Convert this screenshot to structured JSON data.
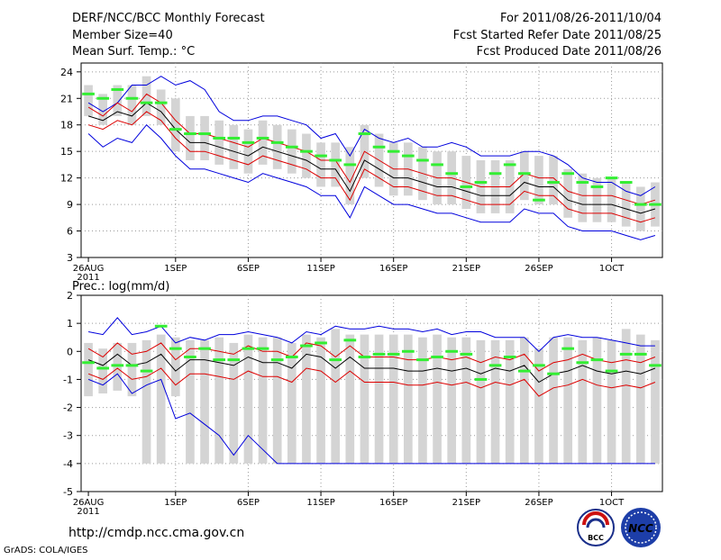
{
  "header": {
    "title": "DERF/NCC/BCC Monthly Forecast",
    "member_size": "Member Size=40",
    "variable_label": "Mean Surf. Temp.: °C",
    "period": "For 2011/08/26-2011/10/04",
    "fcst_started": "Fcst Started Refer Date 2011/08/25",
    "fcst_produced": "Fcst Produced Date 2011/08/26"
  },
  "footer": {
    "url": "http://cmdp.ncc.cma.gov.cn",
    "grads": "GrADS: COLA/IGES",
    "logo_bcc_text": "BCC",
    "logo_ncc_text": "NCC"
  },
  "colors": {
    "envelope": "#0000dd",
    "spread": "#dd0000",
    "mean": "#000000",
    "box": "#d4d4d4",
    "observed": "#33ee33"
  },
  "chart_data": [
    {
      "type": "box-plume",
      "title": "Mean Surf. Temp.: °C",
      "days": 40,
      "xlabels": [
        {
          "day": 0,
          "label": "26AUG",
          "sub": "2011"
        },
        {
          "day": 6,
          "label": "1SEP"
        },
        {
          "day": 11,
          "label": "6SEP"
        },
        {
          "day": 16,
          "label": "11SEP"
        },
        {
          "day": 21,
          "label": "16SEP"
        },
        {
          "day": 26,
          "label": "21SEP"
        },
        {
          "day": 31,
          "label": "26SEP"
        },
        {
          "day": 36,
          "label": "1OCT"
        }
      ],
      "ylim": [
        3,
        25
      ],
      "yticks": [
        3,
        6,
        9,
        12,
        15,
        18,
        21,
        24
      ],
      "max": [
        20.5,
        19.5,
        20.5,
        22.5,
        22.5,
        23.5,
        22.5,
        23,
        22,
        19.5,
        18.5,
        18.5,
        19,
        19,
        18.5,
        18,
        16.5,
        17,
        14.5,
        17.5,
        16.5,
        16,
        16.5,
        15.5,
        15.5,
        16,
        15.5,
        14.5,
        14.5,
        14.5,
        15,
        15,
        14.5,
        13.5,
        12,
        11.5,
        11.5,
        10.5,
        10,
        11
      ],
      "upper": [
        20,
        19,
        20.5,
        19.5,
        21.5,
        20.5,
        18.5,
        17,
        17,
        16.5,
        16,
        15.5,
        16.5,
        16,
        15.5,
        15,
        14,
        14,
        11.5,
        15,
        14,
        13,
        13,
        12.5,
        12,
        12,
        11.5,
        11,
        11,
        11,
        12.5,
        12,
        12,
        10.5,
        10,
        10,
        10,
        9.5,
        9,
        9.5
      ],
      "mean": [
        19,
        18.5,
        19.5,
        19,
        20.5,
        19.5,
        17.5,
        16,
        16,
        15.5,
        15,
        14.5,
        15.5,
        15,
        14.5,
        14,
        13,
        13,
        10.5,
        14,
        13,
        12,
        12,
        11.5,
        11,
        11,
        10.5,
        10,
        10,
        10,
        11.5,
        11,
        11,
        9.5,
        9,
        9,
        9,
        8.5,
        8,
        8.5
      ],
      "lower": [
        18,
        17.5,
        18.5,
        18,
        19.5,
        18.5,
        16.5,
        15,
        15,
        14.5,
        14,
        13.5,
        14.5,
        14,
        13.5,
        13,
        12,
        12,
        9.5,
        13,
        12,
        11,
        11,
        10.5,
        10,
        10,
        9.5,
        9,
        9,
        9,
        10.5,
        10,
        10,
        8.5,
        8,
        8,
        8,
        7.5,
        7,
        7.5
      ],
      "min": [
        17,
        15.5,
        16.5,
        16,
        18,
        16.5,
        14.5,
        13,
        13,
        12.5,
        12,
        11.5,
        12.5,
        12,
        11.5,
        11,
        10,
        10,
        7.5,
        11,
        10,
        9,
        9,
        8.5,
        8,
        8,
        7.5,
        7,
        7,
        7,
        8.5,
        8,
        8,
        6.5,
        6,
        6,
        6,
        5.5,
        5,
        5.5
      ],
      "observed": [
        21.5,
        21,
        22,
        21,
        20.5,
        20.5,
        17.5,
        17,
        17,
        16.5,
        16.5,
        16,
        16.5,
        16,
        15.5,
        15,
        14.5,
        14,
        13.5,
        17,
        15.5,
        15,
        14.5,
        14,
        13.5,
        12.5,
        11,
        11.5,
        12.5,
        13.5,
        12.5,
        9.5,
        11.5,
        12.5,
        11.5,
        11,
        12,
        11.5,
        9,
        9
      ],
      "box_low": [
        19,
        18,
        19,
        18,
        19,
        18,
        15,
        14,
        14,
        13.5,
        13,
        12.5,
        13.5,
        13,
        12.5,
        12,
        11,
        11,
        9,
        12,
        11,
        10,
        10,
        9.5,
        9,
        9,
        8.5,
        8,
        8,
        8,
        9.5,
        9,
        9,
        7.5,
        7,
        7,
        7,
        6.5,
        6,
        6.5
      ],
      "box_high": [
        22.5,
        21.5,
        22.5,
        22.5,
        23.5,
        22,
        21,
        19,
        19,
        18.5,
        18,
        17.5,
        18.5,
        18,
        17.5,
        17,
        16,
        16,
        15.5,
        18,
        17,
        16,
        16,
        15.5,
        15,
        15,
        14.5,
        14,
        14,
        14,
        15,
        14.5,
        14.5,
        13,
        12.5,
        12,
        12,
        11.5,
        11,
        11.5
      ]
    },
    {
      "type": "box-plume",
      "title": "Prec.: log(mm/d)",
      "days": 40,
      "xlabels": [
        {
          "day": 0,
          "label": "26AUG",
          "sub": "2011"
        },
        {
          "day": 6,
          "label": "1SEP"
        },
        {
          "day": 11,
          "label": "6SEP"
        },
        {
          "day": 16,
          "label": "11SEP"
        },
        {
          "day": 21,
          "label": "16SEP"
        },
        {
          "day": 26,
          "label": "21SEP"
        },
        {
          "day": 31,
          "label": "26SEP"
        },
        {
          "day": 36,
          "label": "1OCT"
        }
      ],
      "ylim": [
        -5,
        2
      ],
      "yticks": [
        -5,
        -4,
        -3,
        -2,
        -1,
        0,
        1,
        2
      ],
      "max": [
        0.7,
        0.6,
        1.2,
        0.6,
        0.7,
        0.9,
        0.3,
        0.5,
        0.4,
        0.6,
        0.6,
        0.7,
        0.6,
        0.5,
        0.3,
        0.7,
        0.6,
        0.9,
        0.8,
        0.8,
        0.9,
        0.8,
        0.8,
        0.7,
        0.8,
        0.6,
        0.7,
        0.7,
        0.5,
        0.5,
        0.5,
        0.0,
        0.5,
        0.6,
        0.5,
        0.5,
        0.4,
        0.3,
        0.2,
        0.2
      ],
      "upper": [
        0.1,
        -0.2,
        0.3,
        -0.1,
        0.0,
        0.3,
        -0.3,
        0.1,
        0.1,
        0.0,
        -0.1,
        0.2,
        0.0,
        0.0,
        -0.2,
        0.3,
        0.2,
        -0.2,
        0.2,
        -0.2,
        -0.2,
        -0.2,
        -0.3,
        -0.3,
        -0.2,
        -0.3,
        -0.2,
        -0.4,
        -0.2,
        -0.3,
        -0.1,
        -0.7,
        -0.4,
        -0.3,
        -0.1,
        -0.3,
        -0.4,
        -0.3,
        -0.4,
        -0.2
      ],
      "mean": [
        -0.3,
        -0.5,
        -0.1,
        -0.5,
        -0.4,
        -0.1,
        -0.7,
        -0.3,
        -0.3,
        -0.4,
        -0.5,
        -0.2,
        -0.4,
        -0.4,
        -0.6,
        -0.1,
        -0.2,
        -0.6,
        -0.2,
        -0.6,
        -0.6,
        -0.6,
        -0.7,
        -0.7,
        -0.6,
        -0.7,
        -0.6,
        -0.8,
        -0.6,
        -0.7,
        -0.5,
        -1.1,
        -0.8,
        -0.7,
        -0.5,
        -0.7,
        -0.8,
        -0.7,
        -0.8,
        -0.6
      ],
      "lower": [
        -0.8,
        -1.0,
        -0.6,
        -1.0,
        -0.9,
        -0.6,
        -1.2,
        -0.8,
        -0.8,
        -0.9,
        -1.0,
        -0.7,
        -0.9,
        -0.9,
        -1.1,
        -0.6,
        -0.7,
        -1.1,
        -0.7,
        -1.1,
        -1.1,
        -1.1,
        -1.2,
        -1.2,
        -1.1,
        -1.2,
        -1.1,
        -1.3,
        -1.1,
        -1.2,
        -1.0,
        -1.6,
        -1.3,
        -1.2,
        -1.0,
        -1.2,
        -1.3,
        -1.2,
        -1.3,
        -1.1
      ],
      "min": [
        -1.0,
        -1.2,
        -0.8,
        -1.5,
        -1.2,
        -1.0,
        -2.4,
        -2.2,
        -2.6,
        -3.0,
        -3.7,
        -3.0,
        -3.5,
        -4.0,
        -4.0,
        -4.0,
        -4.0,
        -4.0,
        -4.0,
        -4.0,
        -4.0,
        -4.0,
        -4.0,
        -4.0,
        -4.0,
        -4.0,
        -4.0,
        -4.0,
        -4.0,
        -4.0,
        -4.0,
        -4.0,
        -4.0,
        -4.0,
        -4.0,
        -4.0,
        -4.0,
        -4.0,
        -4.0,
        -4.0
      ],
      "observed": [
        -0.4,
        -0.6,
        -0.5,
        -0.5,
        -0.7,
        0.9,
        0.1,
        -0.2,
        0.1,
        -0.3,
        -0.3,
        0.1,
        0.1,
        -0.3,
        -0.2,
        0.2,
        0.3,
        -0.3,
        0.4,
        -0.2,
        -0.1,
        -0.1,
        0.0,
        -0.3,
        -0.2,
        0.0,
        -0.1,
        -1.0,
        -0.5,
        -0.2,
        -0.7,
        -0.5,
        -0.8,
        0.1,
        -0.4,
        -0.3,
        -0.7,
        -0.1,
        -0.1,
        -0.5
      ],
      "box_low": [
        -1.6,
        -1.5,
        -1.4,
        -1.6,
        -4.0,
        -4.0,
        -1.6,
        -4.0,
        -4.0,
        -4.0,
        -4.0,
        -4.0,
        -4.0,
        -4.0,
        -4.0,
        -4.0,
        -4.0,
        -4.0,
        -4.0,
        -4.0,
        -4.0,
        -4.0,
        -4.0,
        -4.0,
        -4.0,
        -4.0,
        -4.0,
        -4.0,
        -4.0,
        -4.0,
        -4.0,
        -4.0,
        -4.0,
        -4.0,
        -4.0,
        -4.0,
        -4.0,
        -4.0,
        -4.0,
        -4.0
      ],
      "box_high": [
        0.3,
        0.1,
        0.3,
        0.3,
        0.4,
        0.6,
        0.5,
        0.4,
        0.4,
        0.5,
        0.3,
        0.6,
        0.5,
        0.5,
        0.3,
        0.6,
        0.5,
        0.8,
        0.6,
        0.6,
        0.6,
        0.6,
        0.6,
        0.5,
        0.6,
        0.5,
        0.5,
        0.4,
        0.4,
        0.4,
        0.5,
        0.1,
        0.5,
        0.5,
        0.4,
        0.5,
        0.4,
        0.8,
        0.6,
        0.4
      ]
    }
  ]
}
